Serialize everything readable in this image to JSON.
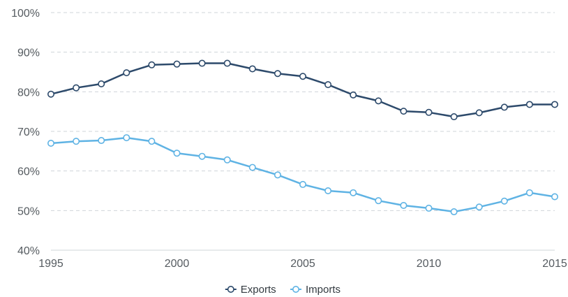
{
  "chart_data": {
    "type": "line",
    "title": "",
    "xlabel": "",
    "ylabel": "",
    "x": [
      1995,
      1996,
      1997,
      1998,
      1999,
      2000,
      2001,
      2002,
      2003,
      2004,
      2005,
      2006,
      2007,
      2008,
      2009,
      2010,
      2011,
      2012,
      2013,
      2014,
      2015
    ],
    "xlim": [
      1995,
      2015
    ],
    "ylim": [
      40,
      100
    ],
    "x_ticks": [
      "1995",
      "2000",
      "2005",
      "2010",
      "2015"
    ],
    "y_ticks": [
      "40%",
      "50%",
      "60%",
      "70%",
      "80%",
      "90%",
      "100%"
    ],
    "grid": "horizontal dashed",
    "legend_position": "bottom-center",
    "series": [
      {
        "name": "Exports",
        "color": "#2d4a6b",
        "values": [
          79.4,
          81.0,
          82.0,
          84.8,
          86.8,
          87.0,
          87.2,
          87.2,
          85.8,
          84.6,
          83.9,
          81.8,
          79.2,
          77.7,
          75.1,
          74.8,
          73.7,
          74.7,
          76.1,
          76.8,
          76.8
        ]
      },
      {
        "name": "Imports",
        "color": "#5fb3e4",
        "values": [
          67.0,
          67.5,
          67.7,
          68.4,
          67.5,
          64.5,
          63.7,
          62.8,
          60.9,
          59.0,
          56.6,
          55.0,
          54.5,
          52.5,
          51.3,
          50.6,
          49.7,
          50.9,
          52.4,
          54.5,
          53.5
        ]
      }
    ]
  }
}
